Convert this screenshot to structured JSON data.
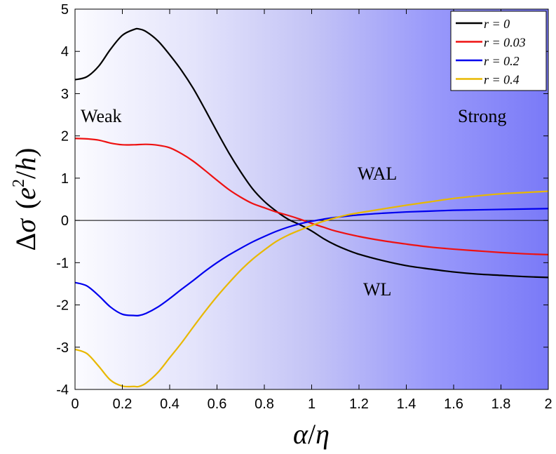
{
  "chart_data": {
    "type": "line",
    "xlabel": "α/η",
    "ylabel": "Δσ (e²/h)",
    "xlim": [
      0,
      2
    ],
    "ylim": [
      -4,
      5
    ],
    "x_ticks": [
      "0",
      "0.2",
      "0.4",
      "0.6",
      "0.8",
      "1",
      "1.2",
      "1.4",
      "1.6",
      "1.8",
      "2"
    ],
    "y_ticks": [
      "5",
      "4",
      "3",
      "2",
      "1",
      "0",
      "-1",
      "-2",
      "-3",
      "-4"
    ],
    "grid": false,
    "legend_position": "top-right",
    "background": "horizontal gradient from white (left) to blue (right)",
    "annotations": {
      "weak": "Weak",
      "strong": "Strong",
      "wal": "WAL",
      "wl": "WL"
    },
    "series": [
      {
        "name": "r = 0",
        "color": "#000000",
        "x": [
          0,
          0.05,
          0.1,
          0.15,
          0.2,
          0.25,
          0.27,
          0.3,
          0.35,
          0.4,
          0.45,
          0.5,
          0.55,
          0.6,
          0.65,
          0.7,
          0.75,
          0.8,
          0.85,
          0.9,
          0.95,
          1.0,
          1.05,
          1.1,
          1.15,
          1.2,
          1.3,
          1.4,
          1.5,
          1.6,
          1.7,
          1.8,
          1.9,
          2.0
        ],
        "y": [
          3.33,
          3.4,
          3.65,
          4.05,
          4.38,
          4.52,
          4.53,
          4.47,
          4.25,
          3.92,
          3.55,
          3.12,
          2.62,
          2.1,
          1.6,
          1.15,
          0.75,
          0.45,
          0.22,
          0.03,
          -0.1,
          -0.25,
          -0.43,
          -0.58,
          -0.7,
          -0.8,
          -0.95,
          -1.07,
          -1.15,
          -1.22,
          -1.27,
          -1.3,
          -1.33,
          -1.35
        ]
      },
      {
        "name": "r = 0.03",
        "color": "#ee1111",
        "x": [
          0,
          0.05,
          0.1,
          0.15,
          0.2,
          0.25,
          0.3,
          0.35,
          0.4,
          0.45,
          0.5,
          0.55,
          0.6,
          0.65,
          0.7,
          0.75,
          0.8,
          0.85,
          0.9,
          0.95,
          1.0,
          1.05,
          1.1,
          1.2,
          1.3,
          1.4,
          1.5,
          1.6,
          1.7,
          1.8,
          1.9,
          2.0
        ],
        "y": [
          1.94,
          1.93,
          1.9,
          1.83,
          1.79,
          1.79,
          1.8,
          1.78,
          1.72,
          1.58,
          1.4,
          1.18,
          0.95,
          0.73,
          0.55,
          0.4,
          0.3,
          0.2,
          0.12,
          0.03,
          -0.07,
          -0.16,
          -0.25,
          -0.38,
          -0.48,
          -0.56,
          -0.63,
          -0.68,
          -0.72,
          -0.76,
          -0.79,
          -0.81
        ]
      },
      {
        "name": "r = 0.2",
        "color": "#0000ee",
        "x": [
          0,
          0.05,
          0.1,
          0.15,
          0.2,
          0.25,
          0.27,
          0.3,
          0.35,
          0.4,
          0.45,
          0.5,
          0.55,
          0.6,
          0.65,
          0.7,
          0.75,
          0.8,
          0.85,
          0.9,
          0.95,
          1.0,
          1.05,
          1.1,
          1.2,
          1.3,
          1.4,
          1.5,
          1.6,
          1.7,
          1.8,
          1.9,
          2.0
        ],
        "y": [
          -1.47,
          -1.55,
          -1.78,
          -2.05,
          -2.22,
          -2.25,
          -2.25,
          -2.2,
          -2.05,
          -1.85,
          -1.63,
          -1.42,
          -1.2,
          -1.0,
          -0.82,
          -0.66,
          -0.51,
          -0.38,
          -0.26,
          -0.16,
          -0.08,
          -0.02,
          0.03,
          0.07,
          0.13,
          0.17,
          0.2,
          0.22,
          0.24,
          0.25,
          0.26,
          0.27,
          0.28
        ]
      },
      {
        "name": "r = 0.4",
        "color": "#e8b800",
        "x": [
          0,
          0.05,
          0.1,
          0.15,
          0.2,
          0.25,
          0.27,
          0.3,
          0.35,
          0.4,
          0.45,
          0.5,
          0.55,
          0.6,
          0.65,
          0.7,
          0.75,
          0.8,
          0.85,
          0.9,
          0.95,
          1.0,
          1.05,
          1.1,
          1.15,
          1.2,
          1.3,
          1.4,
          1.5,
          1.6,
          1.7,
          1.8,
          1.9,
          2.0
        ],
        "y": [
          -3.05,
          -3.15,
          -3.45,
          -3.78,
          -3.92,
          -3.93,
          -3.93,
          -3.85,
          -3.6,
          -3.25,
          -2.9,
          -2.52,
          -2.15,
          -1.8,
          -1.48,
          -1.18,
          -0.92,
          -0.7,
          -0.5,
          -0.35,
          -0.23,
          -0.12,
          -0.02,
          0.06,
          0.13,
          0.18,
          0.27,
          0.36,
          0.44,
          0.52,
          0.58,
          0.63,
          0.66,
          0.69
        ]
      }
    ]
  }
}
